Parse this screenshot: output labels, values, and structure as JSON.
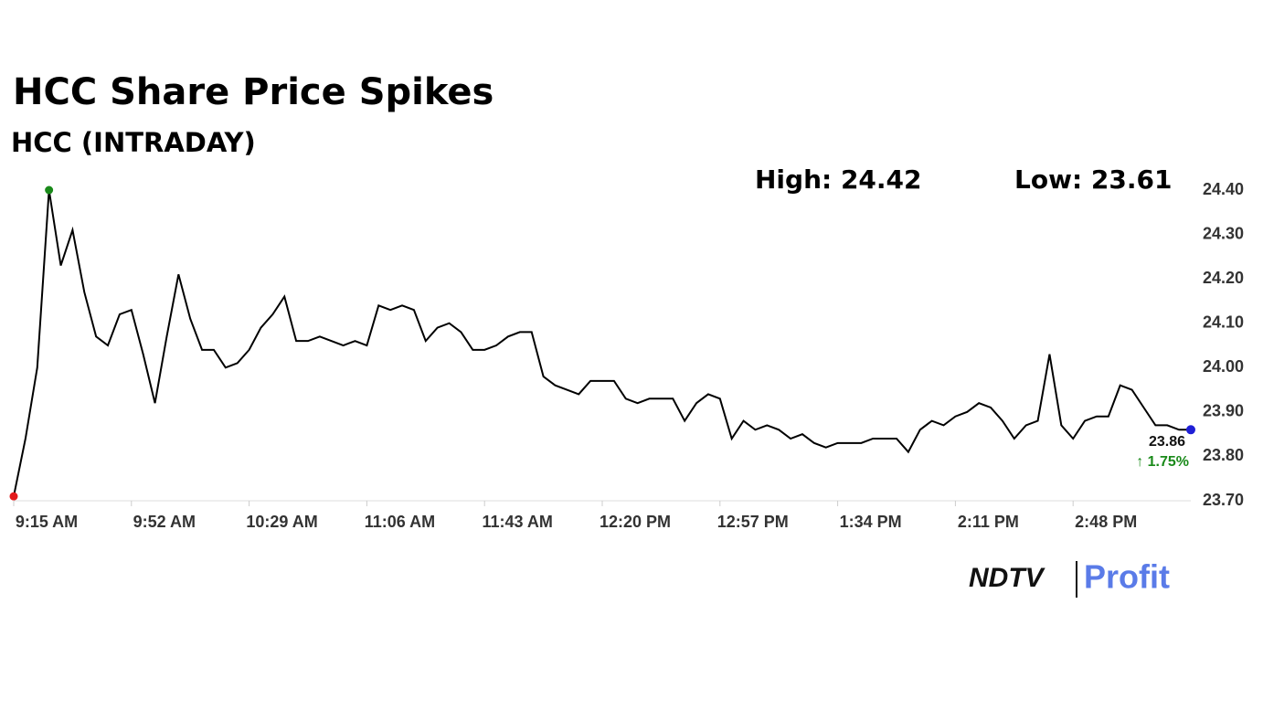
{
  "chart_data": {
    "type": "line",
    "title": "HCC Share Price Spikes",
    "subtitle": "HCC (INTRADAY)",
    "high_label": "High: 24.42",
    "low_label": "Low: 23.61",
    "last_label": "23.86",
    "change_label": "↑ 1.75%",
    "color": "#000000",
    "marker_colors": {
      "low": "#e31a1c",
      "high": "#1a8a1a",
      "last": "#1f1fd6"
    },
    "change_color": "#1a8a1a",
    "grid": false,
    "categories": [
      "9:15 AM",
      null,
      null,
      null,
      null,
      null,
      null,
      null,
      null,
      null,
      "9:52 AM",
      null,
      null,
      null,
      null,
      null,
      null,
      null,
      null,
      null,
      "10:29 AM",
      null,
      null,
      null,
      null,
      null,
      null,
      null,
      null,
      null,
      "11:06 AM",
      null,
      null,
      null,
      null,
      null,
      null,
      null,
      null,
      null,
      "11:43 AM",
      null,
      null,
      null,
      null,
      null,
      null,
      null,
      null,
      null,
      "12:20 PM",
      null,
      null,
      null,
      null,
      null,
      null,
      null,
      null,
      null,
      "12:57 PM",
      null,
      null,
      null,
      null,
      null,
      null,
      null,
      null,
      null,
      "1:34 PM",
      null,
      null,
      null,
      null,
      null,
      null,
      null,
      null,
      null,
      "2:11 PM",
      null,
      null,
      null,
      null,
      null,
      null,
      null,
      null,
      null,
      "2:48 PM",
      null,
      null,
      null,
      null,
      null,
      null,
      null,
      null,
      null,
      null
    ],
    "values": [
      23.71,
      23.84,
      24.0,
      24.4,
      24.23,
      24.31,
      24.17,
      24.07,
      24.05,
      24.12,
      24.13,
      24.03,
      23.92,
      24.07,
      24.21,
      24.11,
      24.04,
      24.04,
      24.0,
      24.01,
      24.04,
      24.09,
      24.12,
      24.16,
      24.06,
      24.06,
      24.07,
      24.06,
      24.05,
      24.06,
      24.05,
      24.14,
      24.13,
      24.14,
      24.13,
      24.06,
      24.09,
      24.1,
      24.08,
      24.04,
      24.04,
      24.05,
      24.07,
      24.08,
      24.08,
      23.98,
      23.96,
      23.95,
      23.94,
      23.97,
      23.97,
      23.97,
      23.93,
      23.92,
      23.93,
      23.93,
      23.93,
      23.88,
      23.92,
      23.94,
      23.93,
      23.84,
      23.88,
      23.86,
      23.87,
      23.86,
      23.84,
      23.85,
      23.83,
      23.82,
      23.83,
      23.83,
      23.83,
      23.84,
      23.84,
      23.84,
      23.81,
      23.86,
      23.88,
      23.87,
      23.89,
      23.9,
      23.92,
      23.91,
      23.88,
      23.84,
      23.87,
      23.88,
      24.03,
      23.87,
      23.84,
      23.88,
      23.89,
      23.89,
      23.96,
      23.95,
      23.91,
      23.87,
      23.87,
      23.86,
      23.86
    ],
    "ylim": [
      23.7,
      24.4
    ],
    "yticks": [
      {
        "value": 23.7,
        "label": "23.70"
      },
      {
        "value": 23.8,
        "label": "23.80"
      },
      {
        "value": 23.9,
        "label": "23.90"
      },
      {
        "value": 24.0,
        "label": "24.00"
      },
      {
        "value": 24.1,
        "label": "24.10"
      },
      {
        "value": 24.2,
        "label": "24.20"
      },
      {
        "value": 24.3,
        "label": "24.30"
      },
      {
        "value": 24.4,
        "label": "24.40"
      }
    ]
  },
  "logo": {
    "brand": "NDTV",
    "product": "Profit"
  }
}
